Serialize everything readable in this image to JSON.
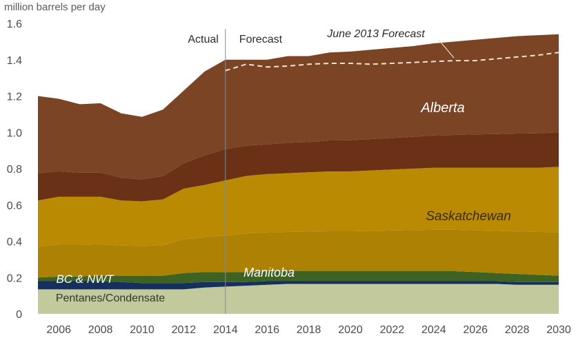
{
  "chart_data": {
    "type": "area",
    "ylabel": "million barrels per day",
    "ylim": [
      0,
      1.6
    ],
    "xlim": [
      2005,
      2030
    ],
    "yticks": [
      "0",
      "0.2",
      "0.4",
      "0.6",
      "0.8",
      "1.0",
      "1.2",
      "1.4",
      "1.6"
    ],
    "ytick_values": [
      0,
      0.2,
      0.4,
      0.6,
      0.8,
      1.0,
      1.2,
      1.4,
      1.6
    ],
    "xticks": [
      "2006",
      "2008",
      "2010",
      "2012",
      "2014",
      "2016",
      "2018",
      "2020",
      "2022",
      "2024",
      "2026",
      "2028",
      "2030"
    ],
    "xtick_values": [
      2006,
      2008,
      2010,
      2012,
      2014,
      2016,
      2018,
      2020,
      2022,
      2024,
      2026,
      2028,
      2030
    ],
    "grid": false,
    "divider_year": 2014,
    "period_labels": {
      "actual": "Actual",
      "forecast": "Forecast"
    },
    "x": [
      2005,
      2006,
      2007,
      2008,
      2009,
      2010,
      2011,
      2012,
      2013,
      2014,
      2015,
      2016,
      2017,
      2018,
      2019,
      2020,
      2021,
      2022,
      2023,
      2024,
      2025,
      2026,
      2027,
      2028,
      2029,
      2030
    ],
    "series": [
      {
        "name": "Pentanes/Condensate",
        "color": "#c2c99c",
        "label_color": "#333333",
        "label_italic": false,
        "values": [
          0.135,
          0.135,
          0.135,
          0.135,
          0.135,
          0.135,
          0.135,
          0.135,
          0.145,
          0.15,
          0.155,
          0.16,
          0.165,
          0.165,
          0.165,
          0.165,
          0.165,
          0.165,
          0.165,
          0.165,
          0.165,
          0.165,
          0.165,
          0.16,
          0.16,
          0.16
        ]
      },
      {
        "name": "BC & NWT",
        "color": "#15305e",
        "label_color": "#ffffff",
        "label_italic": true,
        "values": [
          0.045,
          0.045,
          0.045,
          0.045,
          0.04,
          0.035,
          0.035,
          0.035,
          0.03,
          0.025,
          0.02,
          0.02,
          0.015,
          0.015,
          0.015,
          0.015,
          0.015,
          0.015,
          0.015,
          0.015,
          0.015,
          0.015,
          0.015,
          0.015,
          0.015,
          0.015
        ]
      },
      {
        "name": "Manitoba",
        "color": "#3d6222",
        "label_color": "#ffffff",
        "label_italic": true,
        "values": [
          0.02,
          0.025,
          0.025,
          0.03,
          0.035,
          0.04,
          0.04,
          0.055,
          0.055,
          0.055,
          0.055,
          0.055,
          0.055,
          0.055,
          0.055,
          0.055,
          0.055,
          0.055,
          0.055,
          0.055,
          0.055,
          0.05,
          0.045,
          0.045,
          0.04,
          0.035
        ]
      },
      {
        "name": "Saskatchewan",
        "color": "#b88a05",
        "label_color": "#3a2a0a",
        "label_italic": true,
        "band_colors": [
          "#ad8204",
          "#b98a02"
        ],
        "values": [
          0.425,
          0.44,
          0.44,
          0.435,
          0.415,
          0.41,
          0.42,
          0.465,
          0.48,
          0.505,
          0.53,
          0.535,
          0.54,
          0.545,
          0.55,
          0.55,
          0.555,
          0.56,
          0.565,
          0.57,
          0.57,
          0.575,
          0.58,
          0.585,
          0.59,
          0.6
        ]
      },
      {
        "name": "Alberta",
        "color": "#7b4425",
        "label_color": "#ffffff",
        "label_italic": true,
        "band_colors": [
          "#6b3117",
          "#7b4425"
        ],
        "values": [
          0.575,
          0.54,
          0.51,
          0.515,
          0.48,
          0.465,
          0.495,
          0.54,
          0.625,
          0.665,
          0.64,
          0.63,
          0.645,
          0.64,
          0.655,
          0.66,
          0.665,
          0.67,
          0.675,
          0.685,
          0.695,
          0.705,
          0.715,
          0.725,
          0.73,
          0.73
        ]
      }
    ],
    "forecast_line": {
      "name": "June 2013 Forecast",
      "x": [
        2014,
        2015,
        2016,
        2017,
        2018,
        2019,
        2020,
        2021,
        2022,
        2023,
        2024,
        2025,
        2026,
        2027,
        2028,
        2029,
        2030
      ],
      "values": [
        1.34,
        1.375,
        1.36,
        1.365,
        1.375,
        1.38,
        1.38,
        1.375,
        1.38,
        1.385,
        1.39,
        1.395,
        1.395,
        1.405,
        1.415,
        1.425,
        1.44
      ]
    }
  }
}
